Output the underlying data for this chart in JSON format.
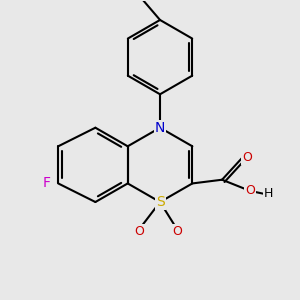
{
  "background_color": "#e8e8e8",
  "bond_color": "#000000",
  "bond_width": 1.5,
  "atom_colors": {
    "S": "#ccaa00",
    "N": "#0000cc",
    "O": "#cc0000",
    "F": "#cc00cc",
    "C": "#000000",
    "H": "#000000"
  },
  "font_size": 10,
  "figsize": [
    3.0,
    3.0
  ],
  "dpi": 100
}
